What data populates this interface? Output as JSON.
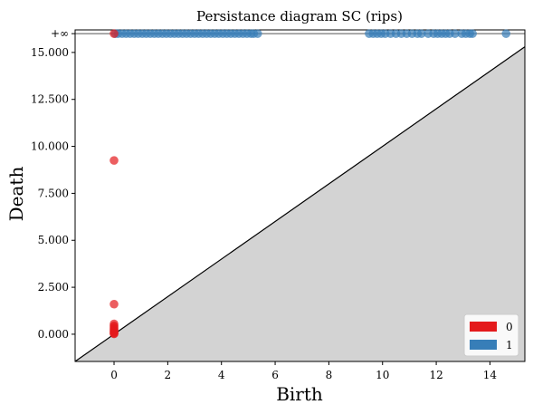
{
  "chart_data": {
    "type": "scatter",
    "title": "Persistance diagram SC (rips)",
    "xlabel": "Birth",
    "ylabel": "Death",
    "xlim": [
      -1.45,
      15.3
    ],
    "ylim": [
      -1.45,
      16.2
    ],
    "infinity_label": "+∞",
    "infinity_value": 16.0,
    "x_ticks": [
      0,
      2,
      4,
      6,
      8,
      10,
      12,
      14
    ],
    "y_ticks": [
      0.0,
      2.5,
      5.0,
      7.5,
      10.0,
      12.5,
      15.0
    ],
    "x_tick_labels": [
      "0",
      "2",
      "4",
      "6",
      "8",
      "10",
      "12",
      "14"
    ],
    "y_tick_labels": [
      "0.000",
      "2.500",
      "5.000",
      "7.500",
      "10.000",
      "12.500",
      "15.000"
    ],
    "diagonal": true,
    "grid": false,
    "legend_position": "bottom-right",
    "series": [
      {
        "name": "0",
        "color": "#e41a1c",
        "points": [
          [
            0,
            9.25
          ],
          [
            0,
            1.6
          ],
          [
            0,
            0.55
          ],
          [
            0,
            0.45
          ],
          [
            0,
            0.38
          ],
          [
            0,
            0.3
          ],
          [
            0,
            0.24
          ],
          [
            0,
            0.18
          ],
          [
            0,
            0.13
          ],
          [
            0,
            0.08
          ],
          [
            0,
            0.04
          ],
          [
            0,
            0.02
          ]
        ],
        "infinite_births": [
          0
        ]
      },
      {
        "name": "1",
        "color": "#377eb8",
        "points": [],
        "infinite_births": [
          0.05,
          0.15,
          0.3,
          0.45,
          0.6,
          0.75,
          0.9,
          1.05,
          1.2,
          1.35,
          1.5,
          1.65,
          1.8,
          1.95,
          2.1,
          2.25,
          2.4,
          2.55,
          2.7,
          2.85,
          3.0,
          3.15,
          3.3,
          3.45,
          3.6,
          3.75,
          3.9,
          4.05,
          4.2,
          4.35,
          4.5,
          4.65,
          4.8,
          4.95,
          5.1,
          5.2,
          5.35,
          9.5,
          9.65,
          9.8,
          9.95,
          10.1,
          10.3,
          10.5,
          10.7,
          10.9,
          11.1,
          11.3,
          11.45,
          11.7,
          11.9,
          12.05,
          12.2,
          12.35,
          12.5,
          12.7,
          12.95,
          13.1,
          13.25,
          13.35,
          14.6
        ]
      }
    ]
  }
}
